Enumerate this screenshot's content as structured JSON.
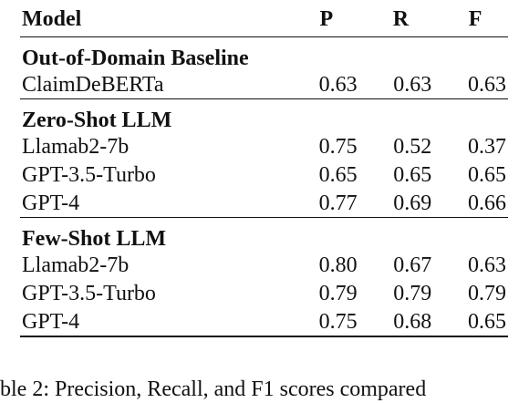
{
  "table": {
    "headers": [
      "Model",
      "P",
      "R",
      "F"
    ],
    "sections": [
      {
        "title": "Out-of-Domain Baseline",
        "rows": [
          {
            "model": "ClaimDeBERTa",
            "p": "0.63",
            "r": "0.63",
            "f": "0.63"
          }
        ]
      },
      {
        "title": "Zero-Shot LLM",
        "rows": [
          {
            "model": "Llamab2-7b",
            "p": "0.75",
            "r": "0.52",
            "f": "0.37"
          },
          {
            "model": "GPT-3.5-Turbo",
            "p": "0.65",
            "r": "0.65",
            "f": "0.65"
          },
          {
            "model": "GPT-4",
            "p": "0.77",
            "r": "0.69",
            "f": "0.66"
          }
        ]
      },
      {
        "title": "Few-Shot LLM",
        "rows": [
          {
            "model": "Llamab2-7b",
            "p": "0.80",
            "r": "0.67",
            "f": "0.63"
          },
          {
            "model": "GPT-3.5-Turbo",
            "p": "0.79",
            "r": "0.79",
            "f": "0.79"
          },
          {
            "model": "GPT-4",
            "p": "0.75",
            "r": "0.68",
            "f": "0.65"
          }
        ]
      }
    ]
  },
  "caption": "ble 2:  Precision, Recall, and F1 scores compared"
}
